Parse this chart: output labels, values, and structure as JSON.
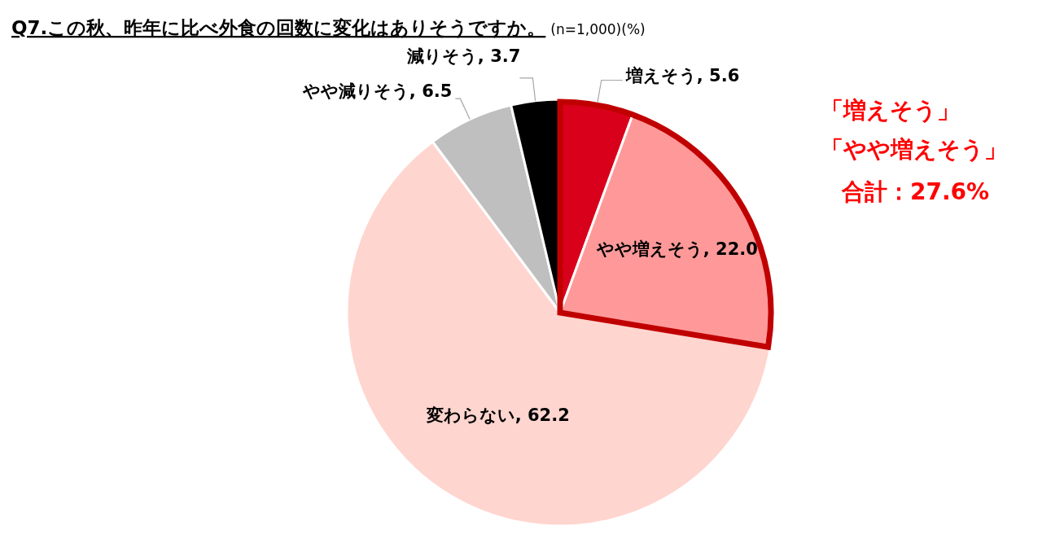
{
  "chart_data": {
    "type": "pie",
    "title": "Q7.この秋、昨年に比べ外食の回数に変化はありそうですか。",
    "subtitle": "(n=1,000)(%)",
    "categories": [
      "増えそう",
      "やや増えそう",
      "変わらない",
      "やや減りそう",
      "減りそう"
    ],
    "values": [
      5.6,
      22.0,
      62.2,
      6.5,
      3.7
    ],
    "value_labels": [
      "5.6",
      "22.0",
      "62.2",
      "6.5",
      "3.7"
    ],
    "colors": [
      "#d9001b",
      "#ff9999",
      "#ffd5cf",
      "#bfbfbf",
      "#000000"
    ],
    "annotations": [
      "「増えそう」",
      "「やや増えそう」",
      "合計：27.6%"
    ]
  }
}
